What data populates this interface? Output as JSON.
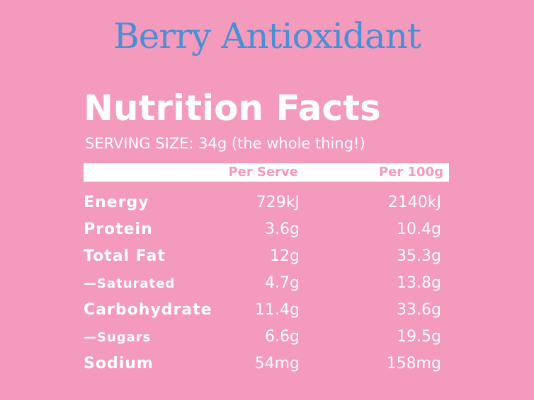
{
  "title": "Berry Antioxidant",
  "heading": "Nutrition Facts",
  "serving_size": "SERVING SIZE: 34g (the whole thing!)",
  "table": {
    "header": [
      "Per Serve",
      "Per 100g"
    ],
    "rows": [
      [
        "Energy",
        "729kJ",
        "2140kJ"
      ],
      [
        "Protein",
        "3.6g",
        "10.4g"
      ],
      [
        "Total Fat",
        "12g",
        "35.3g"
      ],
      [
        "—Saturated",
        "4.7g",
        "13.8g"
      ],
      [
        "Carbohydrate",
        "11.4g",
        "33.6g"
      ],
      [
        "—Sugars",
        "6.6g",
        "19.5g"
      ],
      [
        "Sodium",
        "54mg",
        "158mg"
      ]
    ]
  }
}
